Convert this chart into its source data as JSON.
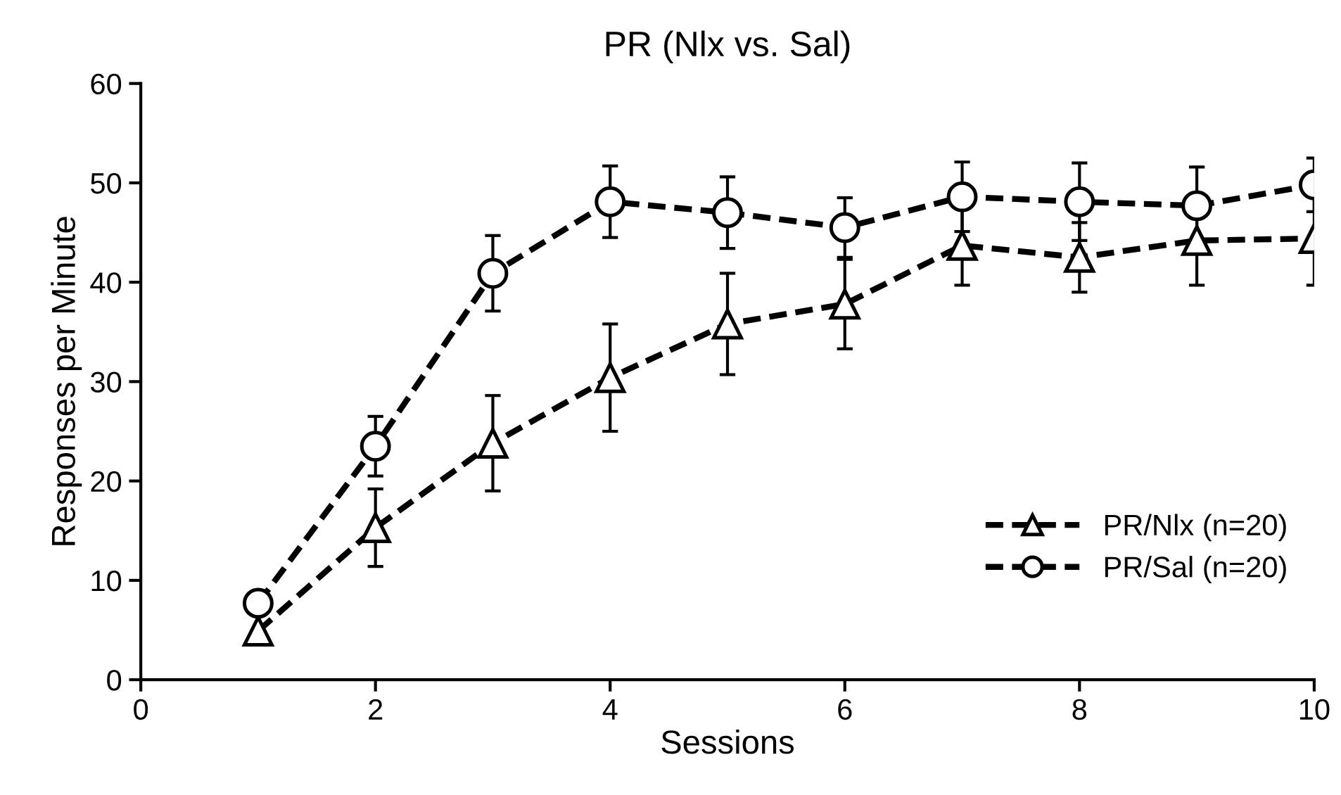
{
  "chart_data": {
    "type": "line",
    "title": "PR (Nlx vs. Sal)",
    "xlabel": "Sessions",
    "ylabel": "Responses per Minute",
    "x": [
      1,
      2,
      3,
      4,
      5,
      6,
      7,
      8,
      9,
      10
    ],
    "series": [
      {
        "name": "PR/Nlx (n=20)",
        "color": "#000000",
        "marker": "triangle",
        "values": [
          4.9,
          15.3,
          23.8,
          30.4,
          35.8,
          37.8,
          43.7,
          42.5,
          44.2,
          44.4
        ],
        "errors": [
          null,
          3.9,
          4.8,
          5.4,
          5.1,
          4.5,
          4.0,
          3.5,
          4.5,
          4.7
        ]
      },
      {
        "name": "PR/Sal (n=20)",
        "color": "#000000",
        "marker": "circle",
        "values": [
          7.7,
          23.5,
          40.9,
          48.1,
          47.0,
          45.5,
          48.6,
          48.1,
          47.7,
          49.8
        ],
        "errors": [
          null,
          3.0,
          3.8,
          3.6,
          3.6,
          3.0,
          3.5,
          3.9,
          3.9,
          2.7
        ]
      }
    ],
    "line_style": "dashed",
    "xlim": [
      0,
      10
    ],
    "ylim": [
      0,
      60
    ],
    "xticks": [
      0,
      2,
      4,
      6,
      8,
      10
    ],
    "yticks": [
      0,
      10,
      20,
      30,
      40,
      50,
      60
    ],
    "grid": false,
    "legend": "right"
  }
}
